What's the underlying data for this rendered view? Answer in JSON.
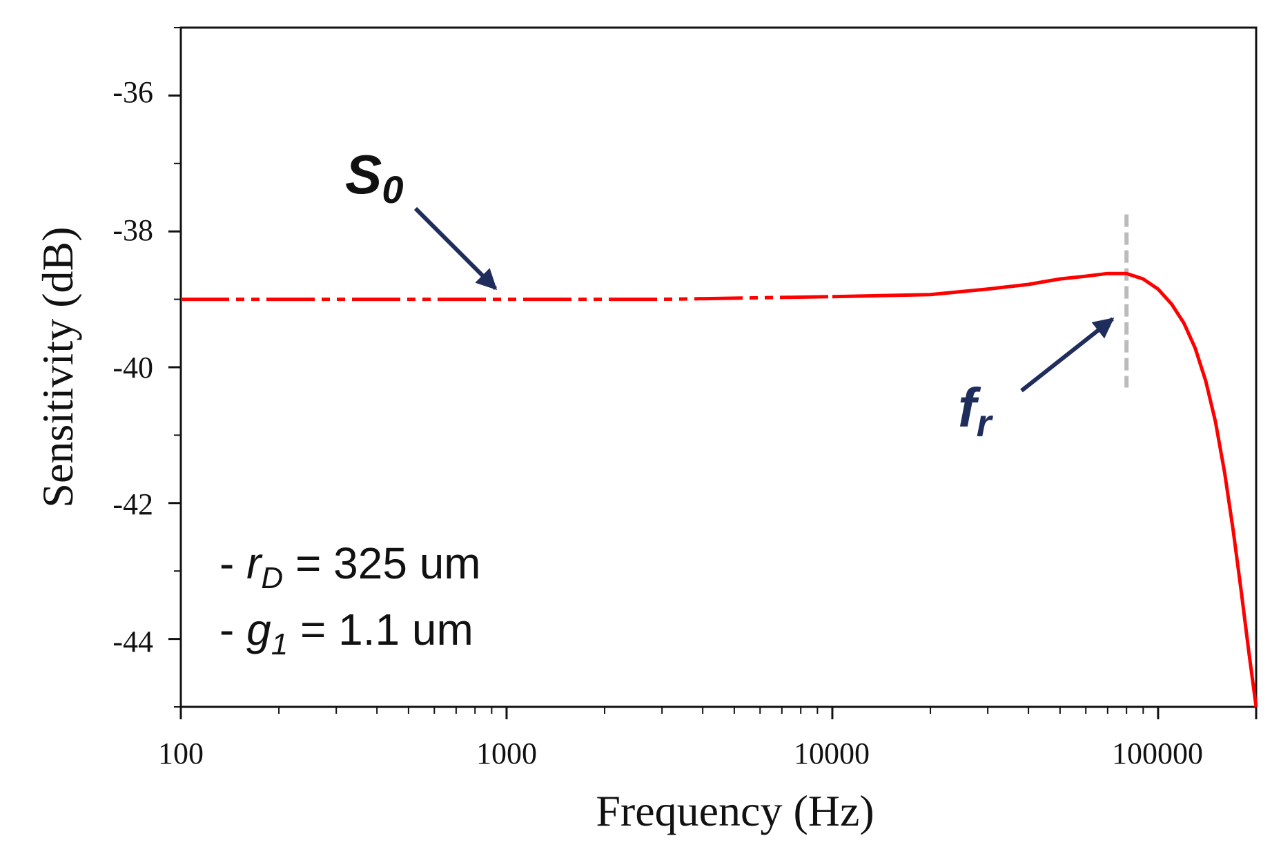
{
  "chart_data": {
    "type": "line",
    "title": "",
    "xlabel": "Frequency (Hz)",
    "ylabel": "Sensitivity (dB)",
    "xscale": "log",
    "xlim": [
      100,
      200000
    ],
    "ylim": [
      -45,
      -35
    ],
    "x_ticks": [
      100,
      1000,
      10000,
      100000
    ],
    "x_tick_labels": [
      "100",
      "1000",
      "10000",
      "100000"
    ],
    "y_ticks": [
      -36,
      -38,
      -40,
      -42,
      -44
    ],
    "y_tick_labels": [
      "-36",
      "-38",
      "-40",
      "-42",
      "-44"
    ],
    "series": [
      {
        "name": "Sensitivity",
        "color": "#ff0000",
        "x": [
          100,
          300,
          1000,
          3000,
          10000,
          20000,
          30000,
          40000,
          50000,
          60000,
          70000,
          80000,
          90000,
          100000,
          110000,
          120000,
          130000,
          140000,
          150000,
          160000,
          170000,
          180000,
          190000,
          200000
        ],
        "y": [
          -39.0,
          -39.0,
          -39.0,
          -39.0,
          -38.96,
          -38.93,
          -38.85,
          -38.78,
          -38.7,
          -38.66,
          -38.62,
          -38.62,
          -38.7,
          -38.85,
          -39.07,
          -39.35,
          -39.72,
          -40.2,
          -40.8,
          -41.55,
          -42.4,
          -43.3,
          -44.2,
          -45.0
        ]
      }
    ],
    "marker_line": {
      "x": 80000,
      "y_range": [
        -37.75,
        -40.3
      ],
      "color": "#bbbbbb",
      "style": "dashed"
    },
    "annotations": {
      "s0": {
        "main": "S",
        "sub": "0"
      },
      "fr": {
        "main": "f",
        "sub": "r"
      },
      "param_rd": {
        "prefix": "- ",
        "var": "r",
        "sub": "D",
        "suffix": " = 325 um"
      },
      "param_g1": {
        "prefix": "- ",
        "var": "g",
        "sub": "1",
        "suffix": " = 1.1 um"
      }
    }
  }
}
